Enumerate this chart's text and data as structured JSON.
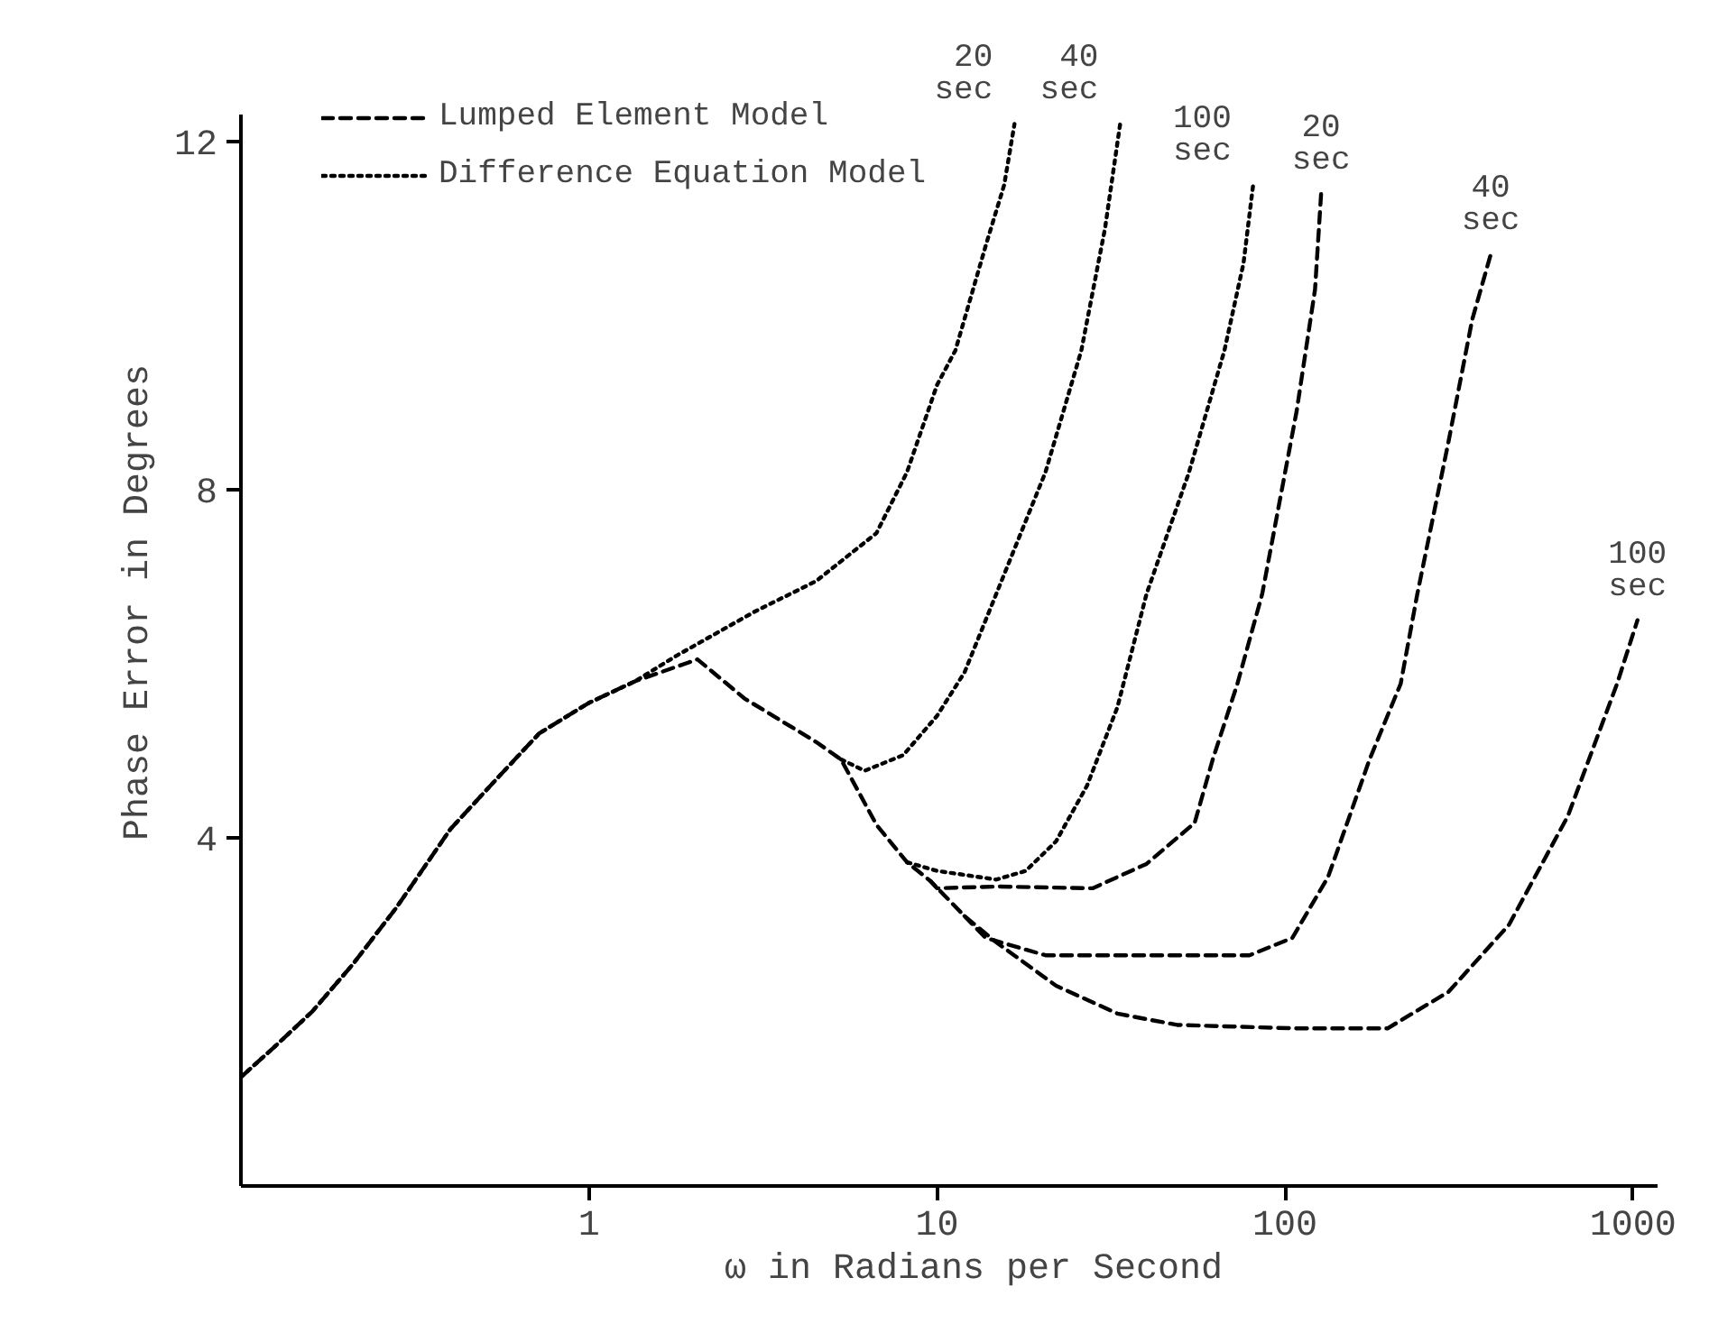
{
  "chart_data": {
    "type": "line",
    "xlabel": "ω in Radians per Second",
    "ylabel": "Phase Error in Degrees",
    "log": "x",
    "xlim": [
      0.1,
      1170
    ],
    "ylim": [
      0,
      12.3
    ],
    "xticks": [
      1,
      10,
      100,
      1000
    ],
    "yticks": [
      4,
      8,
      12
    ],
    "grid": false,
    "legend": "top left",
    "marker": "none",
    "series": [
      {
        "name": "Lumped Element Model",
        "color": "#000000",
        "line_style": "dashed",
        "x": [
          0.1,
          0.125,
          0.16,
          0.21,
          0.28,
          0.4,
          0.55,
          0.72,
          1.0,
          1.36,
          2.05,
          2.8,
          4.5,
          5.3,
          6.7,
          8.2,
          9.6,
          12,
          14.8,
          22,
          33,
          49,
          108,
          197,
          295,
          440,
          650,
          900,
          1030
        ],
        "values": [
          1.25,
          1.6,
          2.0,
          2.55,
          3.2,
          4.1,
          4.7,
          5.2,
          5.55,
          5.8,
          6.05,
          5.6,
          5.1,
          4.9,
          4.15,
          3.72,
          3.5,
          3.1,
          2.8,
          2.3,
          1.98,
          1.85,
          1.81,
          1.81,
          2.23,
          3.0,
          4.25,
          5.77,
          6.5
        ]
      },
      {
        "color": "#000000",
        "line_style": "dashed",
        "x": [
          9.6,
          10,
          14.8,
          28,
          40,
          55,
          62,
          73,
          86,
          108,
          122,
          127
        ],
        "values": [
          3.5,
          3.42,
          3.44,
          3.42,
          3.7,
          4.17,
          4.9,
          5.77,
          6.8,
          8.9,
          10.3,
          11.4
        ]
      },
      {
        "color": "#000000",
        "line_style": "dashed",
        "x": [
          12,
          13.8,
          20.5,
          40,
          79,
          105,
          133,
          175,
          215,
          240,
          295,
          345,
          390
        ],
        "values": [
          3.1,
          2.85,
          2.65,
          2.65,
          2.65,
          2.85,
          3.55,
          4.9,
          5.77,
          6.8,
          8.55,
          9.95,
          10.7
        ]
      },
      {
        "name": "Difference Equation Model",
        "color": "#000000",
        "line_style": "dotted",
        "x": [
          0.1,
          0.125,
          0.16,
          0.21,
          0.28,
          0.4,
          0.55,
          0.72,
          1.0,
          1.36,
          1.8,
          3.0,
          4.5,
          6.7,
          8.2,
          10,
          11.3,
          13.8,
          15.6,
          16.7
        ],
        "values": [
          1.25,
          1.6,
          2.0,
          2.55,
          3.2,
          4.1,
          4.7,
          5.2,
          5.55,
          5.8,
          6.1,
          6.6,
          6.95,
          7.5,
          8.2,
          9.2,
          9.6,
          10.8,
          11.5,
          12.2
        ]
      },
      {
        "color": "#000000",
        "line_style": "dotted",
        "x": [
          5.3,
          6.2,
          8,
          10,
          12,
          14.8,
          20.5,
          26,
          30.4,
          33.6
        ],
        "values": [
          4.9,
          4.77,
          4.95,
          5.4,
          5.9,
          6.8,
          8.2,
          9.6,
          11.0,
          12.2
        ]
      },
      {
        "color": "#000000",
        "line_style": "dotted",
        "x": [
          8.2,
          10,
          14.8,
          18,
          22,
          27,
          33,
          40,
          53,
          67,
          76,
          81
        ],
        "values": [
          3.72,
          3.62,
          3.52,
          3.62,
          3.96,
          4.6,
          5.5,
          6.8,
          8.2,
          9.6,
          10.6,
          11.5
        ]
      }
    ],
    "annotations": [
      "100 sec",
      "20 sec",
      "40 sec",
      "20 sec",
      "40 sec",
      "100 sec"
    ]
  }
}
